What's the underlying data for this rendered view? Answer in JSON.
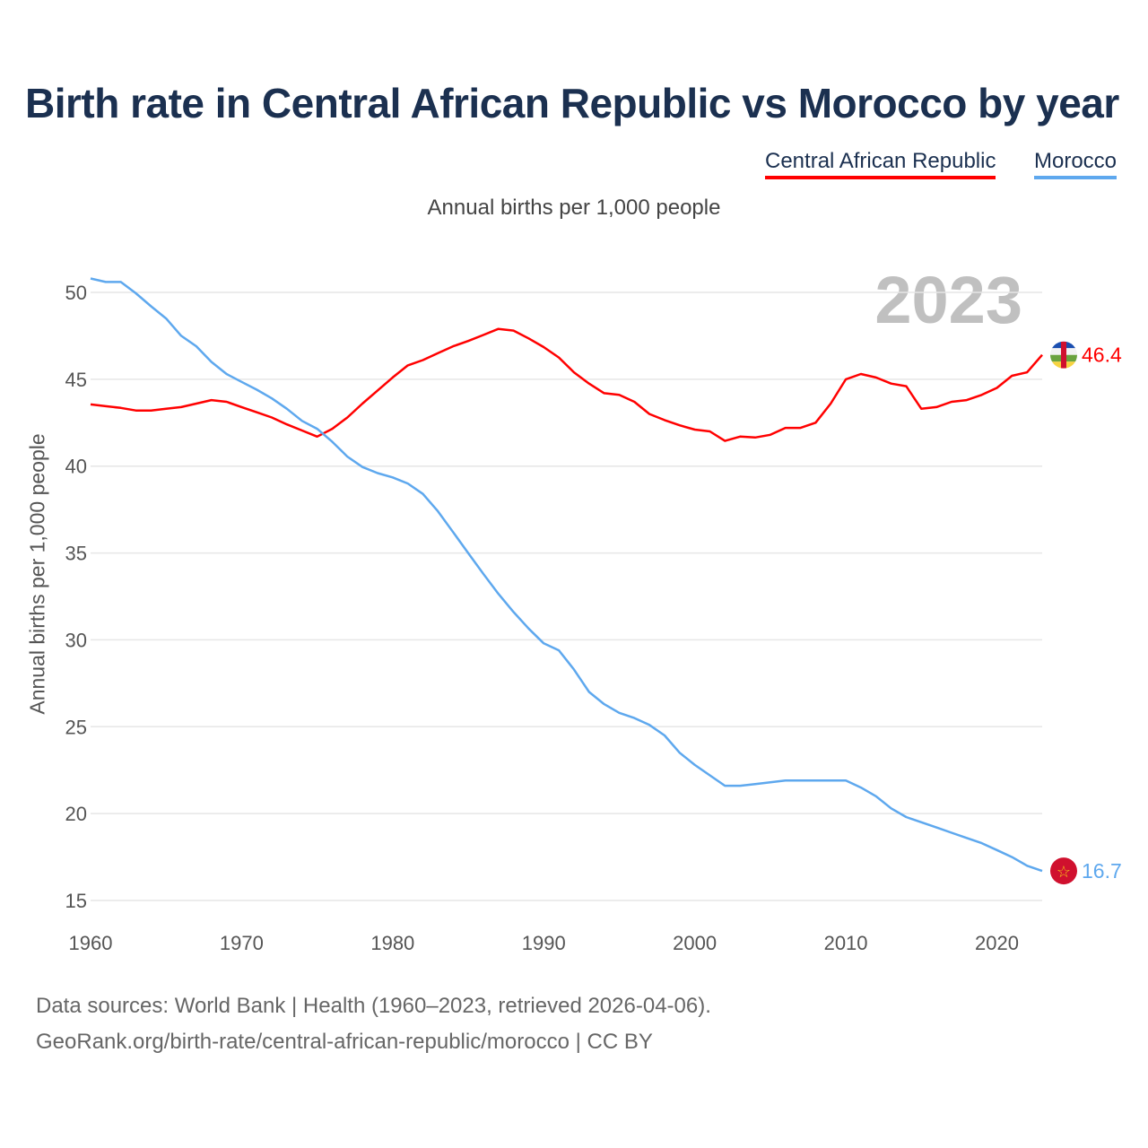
{
  "chart_data": {
    "type": "line",
    "title": "Birth rate in Central African Republic vs Morocco by year",
    "subtitle": "Annual births per 1,000 people",
    "xlabel": "",
    "ylabel": "Annual births per 1,000 people",
    "xlim": [
      1960,
      2023
    ],
    "ylim": [
      15,
      50
    ],
    "x_ticks": [
      "1960",
      "1970",
      "1980",
      "1990",
      "2000",
      "2010",
      "2020"
    ],
    "y_ticks": [
      "15",
      "20",
      "25",
      "30",
      "35",
      "40",
      "45",
      "50"
    ],
    "grid": true,
    "legend_position": "top-right",
    "year_label": "2023",
    "x": [
      1960,
      1961,
      1962,
      1963,
      1964,
      1965,
      1966,
      1967,
      1968,
      1969,
      1970,
      1971,
      1972,
      1973,
      1974,
      1975,
      1976,
      1977,
      1978,
      1979,
      1980,
      1981,
      1982,
      1983,
      1984,
      1985,
      1986,
      1987,
      1988,
      1989,
      1990,
      1991,
      1992,
      1993,
      1994,
      1995,
      1996,
      1997,
      1998,
      1999,
      2000,
      2001,
      2002,
      2003,
      2004,
      2005,
      2006,
      2007,
      2008,
      2009,
      2010,
      2011,
      2012,
      2013,
      2014,
      2015,
      2016,
      2017,
      2018,
      2019,
      2020,
      2021,
      2022,
      2023
    ],
    "series": [
      {
        "name": "Central African Republic",
        "color": "#ff0000",
        "end_label": "46.4",
        "values": [
          43.55,
          43.45,
          43.35,
          43.2,
          43.2,
          43.3,
          43.4,
          43.6,
          43.8,
          43.7,
          43.4,
          43.1,
          42.8,
          42.4,
          42.05,
          41.7,
          42.15,
          42.8,
          43.6,
          44.35,
          45.1,
          45.8,
          46.1,
          46.5,
          46.9,
          47.2,
          47.55,
          47.9,
          47.8,
          47.35,
          46.85,
          46.25,
          45.4,
          44.75,
          44.2,
          44.1,
          43.7,
          43.0,
          42.65,
          42.35,
          42.1,
          42.0,
          41.45,
          41.7,
          41.65,
          41.8,
          42.2,
          42.2,
          42.5,
          43.6,
          45.0,
          45.3,
          45.1,
          44.75,
          44.6,
          43.3,
          43.4,
          43.7,
          43.8,
          44.1,
          44.5,
          45.2,
          45.4,
          46.4
        ]
      },
      {
        "name": "Morocco",
        "color": "#5ea8ee",
        "end_label": "16.7",
        "values": [
          50.8,
          50.6,
          50.6,
          49.95,
          49.2,
          48.5,
          47.5,
          46.9,
          46.0,
          45.3,
          44.85,
          44.4,
          43.9,
          43.3,
          42.6,
          42.15,
          41.4,
          40.55,
          39.95,
          39.6,
          39.35,
          39.0,
          38.4,
          37.4,
          36.2,
          35.0,
          33.8,
          32.65,
          31.6,
          30.65,
          29.8,
          29.4,
          28.3,
          27.0,
          26.3,
          25.8,
          25.5,
          25.1,
          24.5,
          23.5,
          22.8,
          22.2,
          21.6,
          21.6,
          21.7,
          21.8,
          21.9,
          21.9,
          21.9,
          21.9,
          21.9,
          21.5,
          21.0,
          20.3,
          19.8,
          19.5,
          19.2,
          18.9,
          18.6,
          18.3,
          17.9,
          17.5,
          17.0,
          16.7
        ]
      }
    ]
  },
  "footer": {
    "line1": "Data sources: World Bank | Health (1960–2023, retrieved 2026-04-06).",
    "line2": "GeoRank.org/birth-rate/central-african-republic/morocco | CC BY"
  }
}
